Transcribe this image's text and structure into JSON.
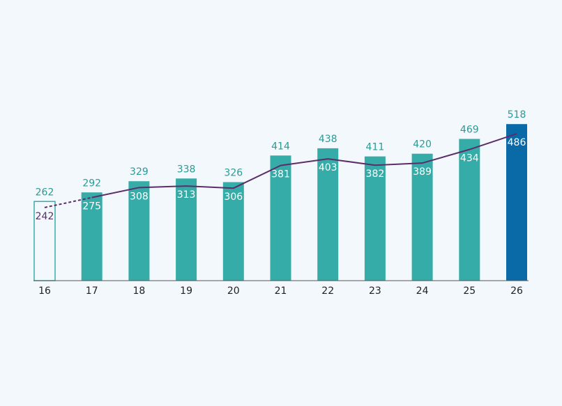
{
  "chart_data": {
    "type": "bar",
    "categories": [
      "16",
      "17",
      "18",
      "19",
      "20",
      "21",
      "22",
      "23",
      "24",
      "25",
      "26"
    ],
    "values": [
      262,
      292,
      329,
      338,
      326,
      414,
      438,
      411,
      420,
      469,
      518
    ],
    "colors": [
      "none",
      "#35aca8",
      "#35aca8",
      "#35aca8",
      "#35aca8",
      "#35aca8",
      "#35aca8",
      "#35aca8",
      "#35aca8",
      "#35aca8",
      "#0a6aa8"
    ],
    "outline_color": "#35aca8",
    "label_color": "#2a9a95",
    "line": {
      "values": [
        242,
        275,
        308,
        313,
        306,
        381,
        403,
        382,
        389,
        434,
        486
      ],
      "color": "#5b2d6b",
      "dashed_first_segment": true
    }
  }
}
